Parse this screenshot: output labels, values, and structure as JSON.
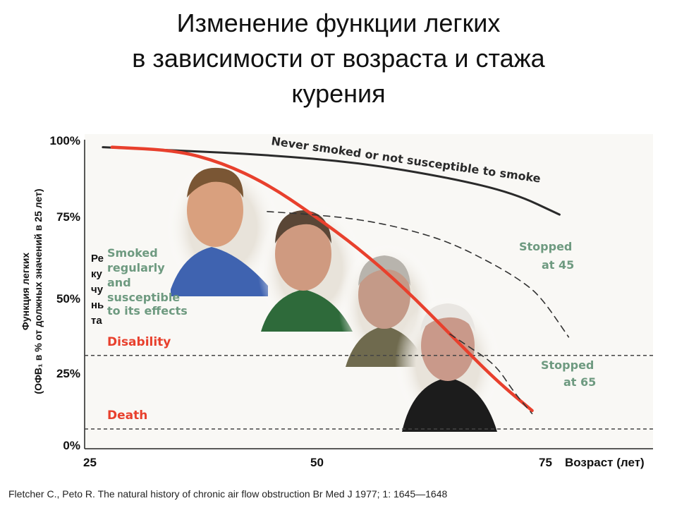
{
  "title": [
    "Изменение функции легких",
    "в зависимости от возраста и стажа",
    "курения"
  ],
  "y_axis_title": [
    "Функция легких",
    "(ОФВ₁ в % от должных значений в 25 лет)"
  ],
  "y_ticks": [
    "100%",
    "75%",
    "50%",
    "25%",
    "0%"
  ],
  "x_ticks": [
    "25",
    "50",
    "75"
  ],
  "x_axis_title": "Возраст (лет)",
  "clipped_note_lines": [
    "Ре",
    "ку",
    "чу",
    "нь",
    "та"
  ],
  "citation": "Fletcher C., Peto R. The natural history of chronic air flow obstruction Br Med J 1977; 1: 1645—1648",
  "colors": {
    "never_smoked": "#2a2a2a",
    "smoker": "#e8402d",
    "stopped": "#333333",
    "threshold_label": "#e8402d",
    "stopped_label": "#6e9a80"
  },
  "chart_data": {
    "type": "line",
    "xlabel": "Возраст (лет)",
    "ylabel": "Функция легких (ОФВ₁ в % от должных значений в 25 лет)",
    "xlim": [
      25,
      80
    ],
    "ylim": [
      0,
      100
    ],
    "series": [
      {
        "name": "Never smoked or not susceptible to smoke",
        "style": "solid",
        "color": "#2a2a2a",
        "x": [
          27,
          35,
          45,
          55,
          65,
          72,
          77
        ],
        "y": [
          98,
          97,
          95.5,
          93,
          88,
          83,
          76
        ]
      },
      {
        "name": "Smoked regularly and susceptible to its effects",
        "style": "solid",
        "color": "#e8402d",
        "x": [
          28,
          35,
          40,
          45,
          50,
          55,
          60,
          65,
          70,
          74
        ],
        "y": [
          98,
          97,
          93,
          86,
          76,
          65,
          52,
          37,
          22,
          12
        ]
      },
      {
        "name": "Stopped at 45",
        "style": "dashed",
        "color": "#333333",
        "x": [
          45,
          50,
          55,
          60,
          65,
          70,
          73,
          75,
          78
        ],
        "y": [
          77,
          76,
          74.5,
          71.5,
          67,
          59.5,
          54,
          49,
          36
        ]
      },
      {
        "name": "Stopped at 65",
        "style": "dashed",
        "color": "#333333",
        "x": [
          65,
          67,
          70,
          72,
          74
        ],
        "y": [
          37,
          33,
          27,
          18,
          11
        ]
      }
    ],
    "thresholds": [
      {
        "label": "Disability",
        "y": 30
      },
      {
        "label": "Death",
        "y": 6
      }
    ],
    "annotations": [
      "Never smoked or not susceptible to smoke",
      "Smoked regularly and susceptible to its effects",
      "Stopped at 45",
      "Stopped at 65",
      "Disability",
      "Death"
    ]
  }
}
